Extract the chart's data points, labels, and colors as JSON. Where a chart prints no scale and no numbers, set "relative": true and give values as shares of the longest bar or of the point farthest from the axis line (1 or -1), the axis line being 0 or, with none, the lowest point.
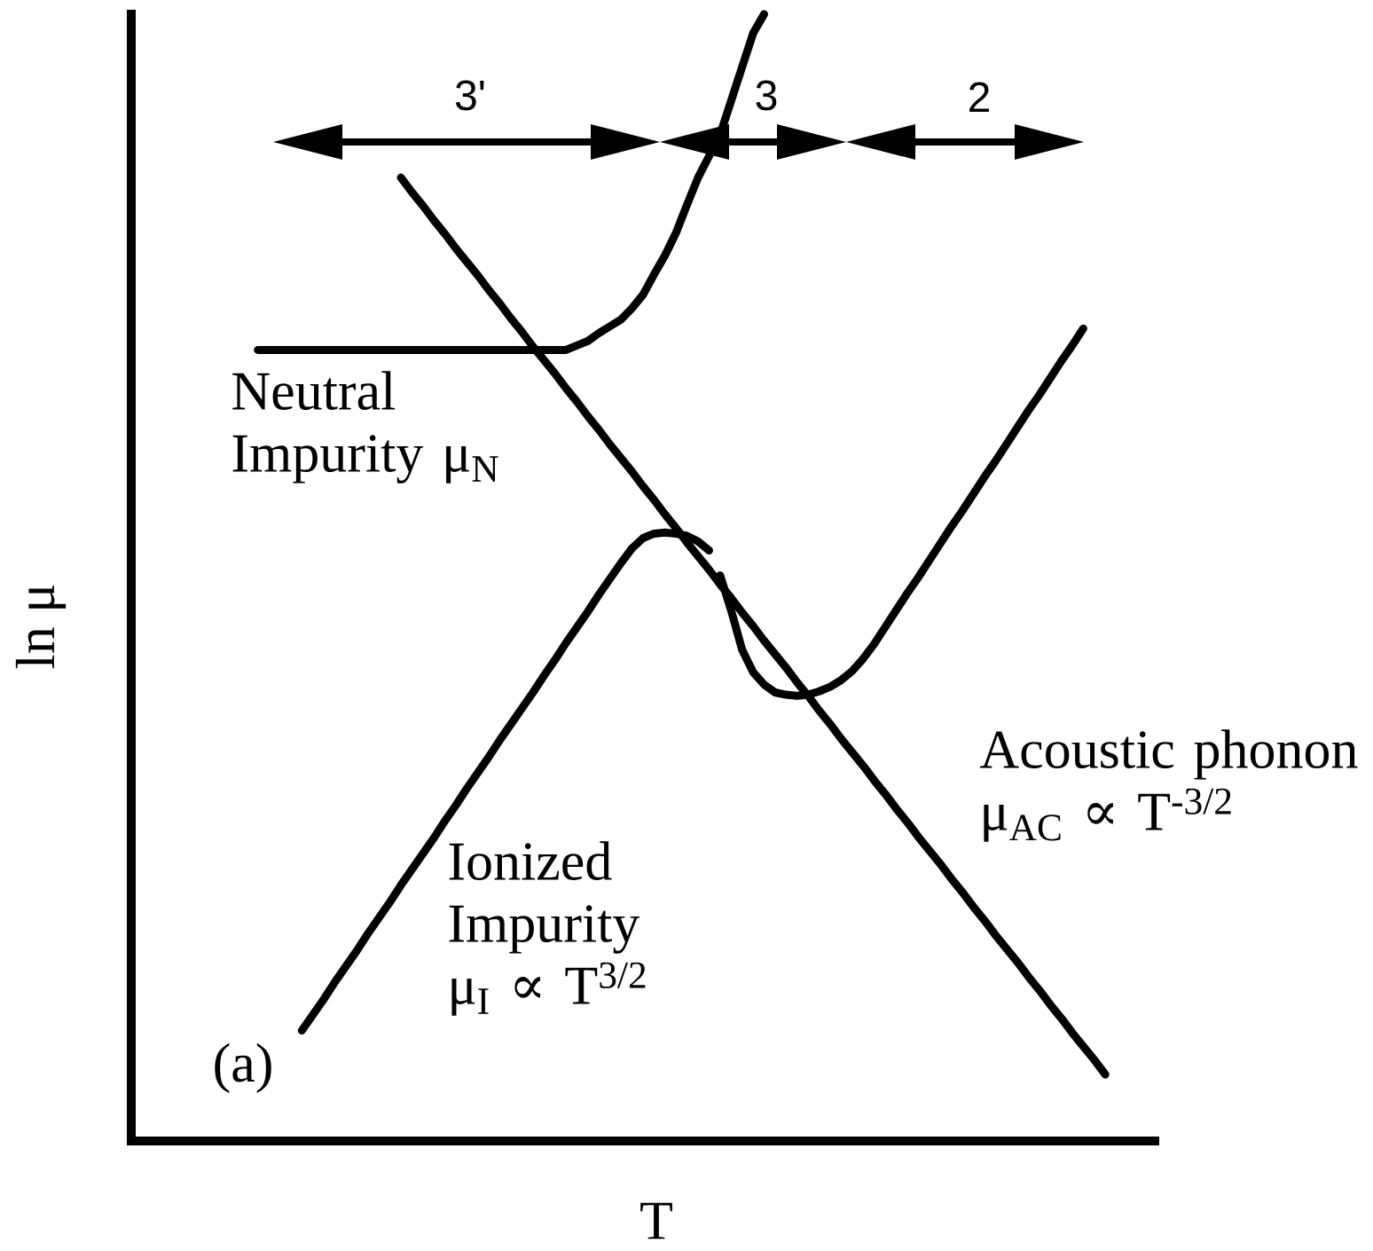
{
  "chart_data": {
    "type": "line",
    "relative": true,
    "xlabel": "T",
    "ylabel": "ln μ",
    "categories": [
      null,
      null,
      null,
      null,
      null,
      null,
      null,
      null,
      null,
      null,
      null,
      null,
      null,
      null,
      null,
      null,
      null,
      null,
      null,
      null,
      null,
      null,
      null,
      null,
      null,
      null,
      null,
      null,
      null,
      null,
      null,
      null,
      null,
      null,
      null,
      null,
      null,
      null,
      null,
      null,
      null,
      null,
      null,
      null,
      null,
      null,
      null,
      null,
      null,
      null,
      null,
      null,
      null,
      null,
      null,
      null,
      null,
      null,
      null,
      null,
      null,
      null,
      null,
      null,
      null,
      null,
      null,
      null,
      null,
      null,
      null,
      null,
      null,
      null,
      null,
      null,
      null,
      null,
      null,
      null,
      null,
      null,
      null,
      null,
      null,
      null,
      null,
      null,
      null,
      null,
      null,
      null,
      null
    ],
    "series": [
      {
        "name": "Neutral Impurity μ$_{N}$",
        "color": "#000000",
        "values": [
          null,
          null,
          null,
          null,
          null,
          null,
          null,
          null,
          null,
          null,
          null,
          0.702,
          0.702,
          0.702,
          0.702,
          0.702,
          0.702,
          0.702,
          0.702,
          0.702,
          0.702,
          0.702,
          0.702,
          0.702,
          0.702,
          0.702,
          0.702,
          0.702,
          0.702,
          0.702,
          0.702,
          0.702,
          0.702,
          0.702,
          0.702,
          0.702,
          0.702,
          0.702,
          0.702,
          0.702,
          0.706,
          0.71,
          0.717,
          0.723,
          0.729,
          0.739,
          0.751,
          0.769,
          0.786,
          0.806,
          0.831,
          0.855,
          0.874,
          0.893,
          0.923,
          0.953,
          0.983,
          1.0,
          null,
          null,
          null,
          null,
          null,
          null,
          null,
          null,
          null,
          null,
          null,
          null,
          null,
          null,
          null,
          null,
          null,
          null,
          null,
          null,
          null,
          null,
          null,
          null,
          null,
          null,
          null,
          null,
          null,
          null,
          null,
          null,
          null,
          null,
          null
        ]
      },
      {
        "name": "Ionized Impurity μ$_{I}$ ∝ T$^{3/2}$",
        "color": "#000000",
        "values": [
          null,
          null,
          null,
          null,
          null,
          null,
          null,
          null,
          null,
          null,
          null,
          null,
          null,
          null,
          null,
          0.098,
          0.112,
          0.126,
          0.141,
          0.155,
          0.169,
          0.184,
          0.198,
          0.212,
          0.227,
          0.241,
          0.255,
          0.269,
          0.284,
          0.298,
          0.313,
          0.327,
          0.341,
          0.356,
          0.37,
          0.384,
          0.398,
          0.413,
          0.427,
          0.442,
          0.456,
          0.47,
          0.485,
          0.499,
          0.513,
          0.526,
          0.535,
          0.539,
          0.54,
          0.539,
          0.537,
          0.532,
          0.524,
          null,
          null,
          null,
          null,
          null,
          null,
          null,
          null,
          null,
          null,
          null,
          null,
          null,
          null,
          null,
          null,
          null,
          null,
          null,
          null,
          null,
          null,
          null,
          null,
          null,
          null,
          null,
          null,
          null,
          null,
          null,
          null,
          null,
          null,
          null,
          null,
          null,
          null,
          null,
          null
        ]
      },
      {
        "name": "Acoustic phonon μ$_{AC}$ ∝ T$^{-3/2}$",
        "color": "#000000",
        "values": [
          null,
          null,
          null,
          null,
          null,
          null,
          null,
          null,
          null,
          null,
          null,
          null,
          null,
          null,
          null,
          null,
          null,
          null,
          null,
          null,
          null,
          null,
          null,
          null,
          0.855,
          0.842,
          0.83,
          0.817,
          0.805,
          0.792,
          0.78,
          0.768,
          0.755,
          0.743,
          0.73,
          0.718,
          0.705,
          0.693,
          0.681,
          0.668,
          0.656,
          0.643,
          0.631,
          0.618,
          0.606,
          0.594,
          0.581,
          0.569,
          0.556,
          0.544,
          0.531,
          0.519,
          0.507,
          0.494,
          0.482,
          0.469,
          0.457,
          0.444,
          0.432,
          0.42,
          0.407,
          0.395,
          0.382,
          0.37,
          0.357,
          0.345,
          0.333,
          0.32,
          0.308,
          0.295,
          0.283,
          0.27,
          0.258,
          0.246,
          0.233,
          0.221,
          0.208,
          0.196,
          0.183,
          0.171,
          0.159,
          0.146,
          0.134,
          0.121,
          0.109,
          0.096,
          0.084,
          0.072,
          0.059,
          null,
          null,
          null,
          null
        ]
      },
      {
        "color": "#000000",
        "values": [
          null,
          null,
          null,
          null,
          null,
          null,
          null,
          null,
          null,
          null,
          null,
          null,
          null,
          null,
          null,
          null,
          null,
          null,
          null,
          null,
          null,
          null,
          null,
          null,
          null,
          null,
          null,
          null,
          null,
          null,
          null,
          null,
          null,
          null,
          null,
          null,
          null,
          null,
          null,
          null,
          null,
          null,
          null,
          null,
          null,
          null,
          null,
          null,
          null,
          null,
          null,
          null,
          null,
          0.502,
          0.471,
          0.436,
          0.416,
          0.405,
          0.398,
          0.396,
          0.395,
          0.396,
          0.399,
          0.403,
          0.409,
          0.417,
          0.428,
          0.441,
          0.456,
          0.471,
          0.486,
          0.5,
          0.515,
          0.53,
          0.545,
          0.559,
          0.574,
          0.589,
          0.603,
          0.618,
          0.633,
          0.648,
          0.662,
          0.677,
          0.692,
          0.706,
          0.721,
          null,
          null,
          null,
          null,
          null,
          null
        ]
      }
    ],
    "annotations": [
      "3'",
      "3",
      "2",
      "(a)"
    ]
  }
}
